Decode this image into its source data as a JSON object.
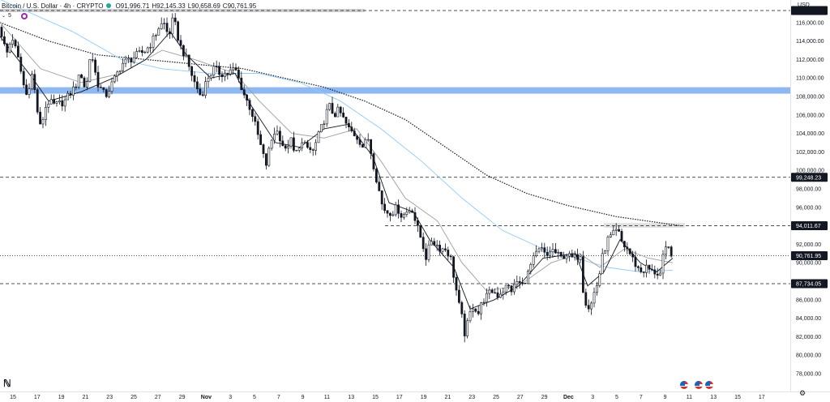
{
  "header": {
    "symbol": "Bitcoin / U.S. Dollar · 4h · CRYPTO",
    "open_label": "O",
    "open": "91,996.71",
    "high_label": "H",
    "high": "92,145.33",
    "low_label": "L",
    "low": "90,658.69",
    "close_label": "C",
    "close": "90,761.95",
    "indicator_count": "5",
    "currency": "USD"
  },
  "colors": {
    "candle": "#131722",
    "ema_fast": "#131722",
    "ema_mid": "#9e9e9e",
    "ma_blue": "#90caf9",
    "ma_dotted": "#131722",
    "zone": "#90b8f0",
    "label_bg": "#131722"
  },
  "icons": [
    "chevron-down-icon",
    "indicator-badge-icon",
    "tradingview-logo-icon",
    "event-flag-icon",
    "settings-icon"
  ],
  "chart_data": {
    "type": "candlestick",
    "ylim": [
      76500,
      118500
    ],
    "y_ticks": [
      78000,
      80000,
      82000,
      84000,
      86000,
      88000,
      90000,
      92000,
      94000,
      96000,
      98000,
      100000,
      102000,
      104000,
      106000,
      108000,
      110000,
      112000,
      114000,
      116000
    ],
    "x_ticks": [
      "15",
      "17",
      "19",
      "21",
      "23",
      "25",
      "27",
      "29",
      "Nov",
      "3",
      "5",
      "7",
      "9",
      "11",
      "13",
      "15",
      "17",
      "19",
      "21",
      "23",
      "25",
      "27",
      "29",
      "Dec",
      "3",
      "5",
      "7",
      "9",
      "11",
      "13",
      "15",
      "17"
    ],
    "price_labels": [
      {
        "text": "99,248.23",
        "value": 99248.23,
        "style": "dashed"
      },
      {
        "text": "94,011.67",
        "value": 94011.67,
        "style": "dashed"
      },
      {
        "text": "90,761.95",
        "value": 90761.95,
        "style": "dotted"
      },
      {
        "text": "87,734.05",
        "value": 87734.05,
        "style": "dashed"
      }
    ],
    "top_level": 117300,
    "resistance_zone": [
      108300,
      109000
    ],
    "grey_zone": [
      93800,
      94300
    ],
    "price_path": [
      [
        0,
        115500
      ],
      [
        8,
        112500
      ],
      [
        15,
        114500
      ],
      [
        24,
        111500
      ],
      [
        32,
        108000
      ],
      [
        40,
        110500
      ],
      [
        46,
        106500
      ],
      [
        50,
        104500
      ],
      [
        58,
        107500
      ],
      [
        68,
        107000
      ],
      [
        80,
        107500
      ],
      [
        92,
        109000
      ],
      [
        100,
        110500
      ],
      [
        106,
        108500
      ],
      [
        112,
        113000
      ],
      [
        120,
        109500
      ],
      [
        130,
        108000
      ],
      [
        142,
        110000
      ],
      [
        150,
        111500
      ],
      [
        160,
        112000
      ],
      [
        170,
        112500
      ],
      [
        180,
        113000
      ],
      [
        188,
        114000
      ],
      [
        196,
        115500
      ],
      [
        202,
        116000
      ],
      [
        208,
        114500
      ],
      [
        214,
        116500
      ],
      [
        222,
        113500
      ],
      [
        228,
        112500
      ],
      [
        234,
        111000
      ],
      [
        240,
        109500
      ],
      [
        248,
        108000
      ],
      [
        256,
        110000
      ],
      [
        264,
        111000
      ],
      [
        272,
        110500
      ],
      [
        280,
        110500
      ],
      [
        290,
        111000
      ],
      [
        296,
        109500
      ],
      [
        302,
        108000
      ],
      [
        310,
        106500
      ],
      [
        316,
        104500
      ],
      [
        322,
        102500
      ],
      [
        328,
        100500
      ],
      [
        334,
        103000
      ],
      [
        340,
        104500
      ],
      [
        346,
        103500
      ],
      [
        352,
        102000
      ],
      [
        358,
        103500
      ],
      [
        364,
        101500
      ],
      [
        370,
        103000
      ],
      [
        378,
        102500
      ],
      [
        386,
        102000
      ],
      [
        394,
        104000
      ],
      [
        400,
        105500
      ],
      [
        406,
        107000
      ],
      [
        412,
        106000
      ],
      [
        418,
        106500
      ],
      [
        424,
        105500
      ],
      [
        430,
        104500
      ],
      [
        436,
        104000
      ],
      [
        442,
        103500
      ],
      [
        448,
        102500
      ],
      [
        454,
        103500
      ],
      [
        460,
        101000
      ],
      [
        466,
        98500
      ],
      [
        472,
        96000
      ],
      [
        478,
        95500
      ],
      [
        484,
        95500
      ],
      [
        490,
        96000
      ],
      [
        496,
        95000
      ],
      [
        502,
        95500
      ],
      [
        508,
        96000
      ],
      [
        514,
        94000
      ],
      [
        520,
        92500
      ],
      [
        526,
        90500
      ],
      [
        532,
        92500
      ],
      [
        538,
        92000
      ],
      [
        544,
        91500
      ],
      [
        550,
        91500
      ],
      [
        556,
        90500
      ],
      [
        562,
        87500
      ],
      [
        566,
        85500
      ],
      [
        570,
        84000
      ],
      [
        574,
        82000
      ],
      [
        578,
        84000
      ],
      [
        584,
        85500
      ],
      [
        590,
        84500
      ],
      [
        596,
        86000
      ],
      [
        602,
        86500
      ],
      [
        608,
        87000
      ],
      [
        614,
        86500
      ],
      [
        620,
        87000
      ],
      [
        626,
        87500
      ],
      [
        632,
        87000
      ],
      [
        638,
        88000
      ],
      [
        644,
        87500
      ],
      [
        650,
        88500
      ],
      [
        656,
        90000
      ],
      [
        662,
        91000
      ],
      [
        668,
        91500
      ],
      [
        674,
        90500
      ],
      [
        680,
        91500
      ],
      [
        686,
        91000
      ],
      [
        692,
        90500
      ],
      [
        698,
        91000
      ],
      [
        704,
        90500
      ],
      [
        710,
        90500
      ],
      [
        716,
        91000
      ],
      [
        720,
        86500
      ],
      [
        724,
        85500
      ],
      [
        728,
        85000
      ],
      [
        732,
        86500
      ],
      [
        738,
        88000
      ],
      [
        744,
        91000
      ],
      [
        750,
        92500
      ],
      [
        756,
        93000
      ],
      [
        762,
        93500
      ],
      [
        768,
        92000
      ],
      [
        774,
        91500
      ],
      [
        780,
        90500
      ],
      [
        786,
        89500
      ],
      [
        792,
        89000
      ],
      [
        798,
        89500
      ],
      [
        804,
        89000
      ],
      [
        810,
        89000
      ],
      [
        814,
        88500
      ],
      [
        818,
        90500
      ],
      [
        822,
        91500
      ],
      [
        826,
        91500
      ],
      [
        830,
        90762
      ]
    ],
    "ema_fast": [
      [
        0,
        114500
      ],
      [
        40,
        110000
      ],
      [
        60,
        107500
      ],
      [
        100,
        108500
      ],
      [
        140,
        110000
      ],
      [
        180,
        112000
      ],
      [
        210,
        115000
      ],
      [
        230,
        112500
      ],
      [
        260,
        110000
      ],
      [
        290,
        110500
      ],
      [
        310,
        107000
      ],
      [
        340,
        103000
      ],
      [
        370,
        102500
      ],
      [
        400,
        104500
      ],
      [
        430,
        105000
      ],
      [
        460,
        101500
      ],
      [
        480,
        96500
      ],
      [
        510,
        95500
      ],
      [
        530,
        92500
      ],
      [
        560,
        89500
      ],
      [
        580,
        85000
      ],
      [
        610,
        86000
      ],
      [
        640,
        87500
      ],
      [
        670,
        90500
      ],
      [
        710,
        91000
      ],
      [
        725,
        87500
      ],
      [
        745,
        89000
      ],
      [
        765,
        92500
      ],
      [
        790,
        90000
      ],
      [
        810,
        89000
      ],
      [
        830,
        90500
      ]
    ],
    "ema_mid": [
      [
        0,
        116000
      ],
      [
        50,
        111000
      ],
      [
        100,
        109500
      ],
      [
        150,
        110500
      ],
      [
        200,
        113000
      ],
      [
        240,
        112000
      ],
      [
        290,
        110500
      ],
      [
        320,
        107500
      ],
      [
        360,
        104000
      ],
      [
        400,
        103500
      ],
      [
        440,
        104500
      ],
      [
        470,
        101000
      ],
      [
        500,
        97000
      ],
      [
        540,
        94500
      ],
      [
        570,
        90000
      ],
      [
        600,
        87000
      ],
      [
        640,
        87500
      ],
      [
        680,
        90000
      ],
      [
        715,
        91000
      ],
      [
        740,
        89500
      ],
      [
        770,
        91500
      ],
      [
        800,
        90500
      ],
      [
        830,
        90000
      ]
    ],
    "ma_blue": [
      [
        0,
        118500
      ],
      [
        90,
        115000
      ],
      [
        150,
        112000
      ],
      [
        200,
        111000
      ],
      [
        260,
        110500
      ],
      [
        320,
        110500
      ],
      [
        370,
        109500
      ],
      [
        420,
        107500
      ],
      [
        470,
        104500
      ],
      [
        520,
        101000
      ],
      [
        570,
        97000
      ],
      [
        620,
        93500
      ],
      [
        670,
        91500
      ],
      [
        710,
        90500
      ],
      [
        750,
        89500
      ],
      [
        790,
        89000
      ],
      [
        830,
        89200
      ]
    ],
    "ma_dotted": [
      [
        0,
        116000
      ],
      [
        60,
        114000
      ],
      [
        120,
        112500
      ],
      [
        180,
        112000
      ],
      [
        240,
        111500
      ],
      [
        300,
        111000
      ],
      [
        350,
        110000
      ],
      [
        400,
        109000
      ],
      [
        450,
        107500
      ],
      [
        500,
        105500
      ],
      [
        550,
        102500
      ],
      [
        600,
        99500
      ],
      [
        650,
        97500
      ],
      [
        700,
        96200
      ],
      [
        760,
        95000
      ],
      [
        800,
        94500
      ],
      [
        840,
        94000
      ]
    ]
  }
}
